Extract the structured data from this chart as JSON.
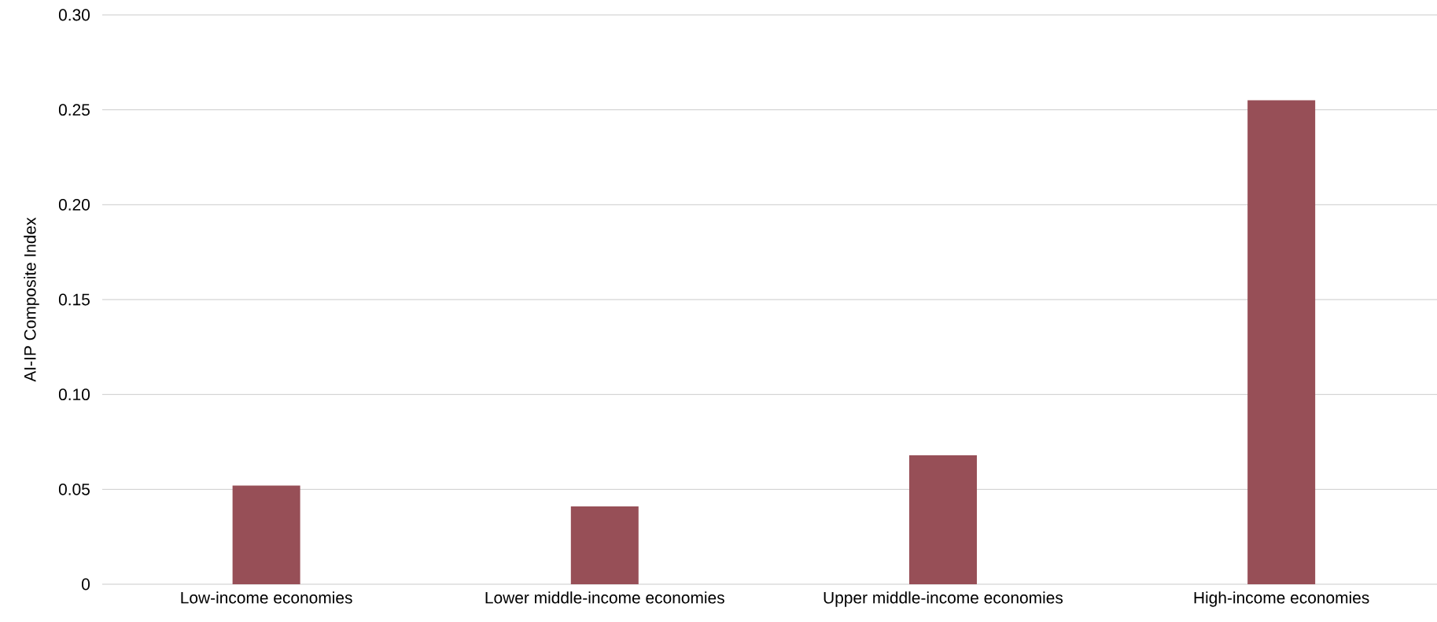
{
  "chart_data": {
    "type": "bar",
    "ylabel": "AI-IP Composite Index",
    "categories": [
      "Low-income economies",
      "Lower middle-income economies",
      "Upper middle-income economies",
      "High-income economies"
    ],
    "values": [
      0.052,
      0.041,
      0.068,
      0.255
    ],
    "color": "#974f57",
    "ylim": [
      0,
      0.3
    ],
    "yticks": [
      0,
      0.05,
      {
        "value": 0.1,
        "label": "0.10"
      },
      0.15,
      {
        "value": 0.2,
        "label": "0.20"
      },
      0.25,
      {
        "value": 0.3,
        "label": "0.30"
      }
    ],
    "grid": "y"
  }
}
